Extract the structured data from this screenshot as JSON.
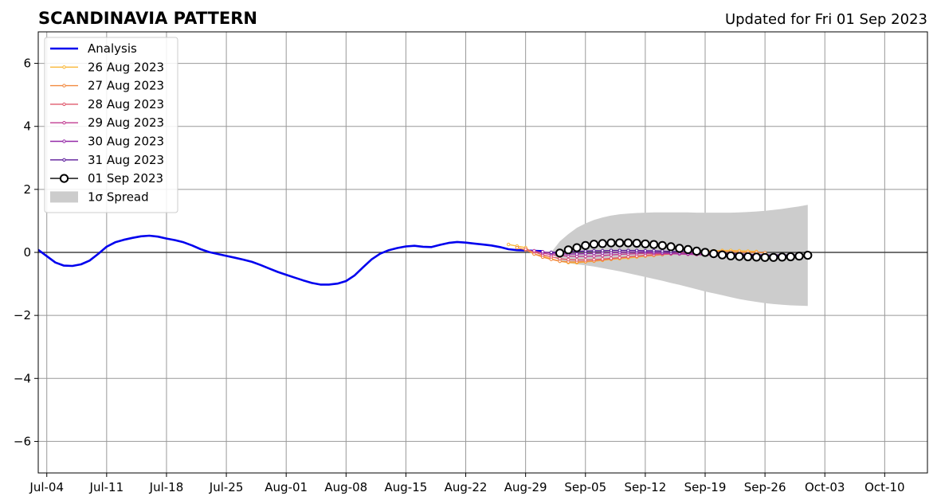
{
  "chart_data": {
    "type": "line",
    "title": "SCANDINAVIA PATTERN",
    "subtitle": "Updated for Fri 01 Sep 2023",
    "xlim": [
      "2023-07-03",
      "2023-10-15"
    ],
    "ylim": [
      -7,
      7
    ],
    "x_ticks": [
      {
        "date": "2023-07-04",
        "label": "Jul-04"
      },
      {
        "date": "2023-07-11",
        "label": "Jul-11"
      },
      {
        "date": "2023-07-18",
        "label": "Jul-18"
      },
      {
        "date": "2023-07-25",
        "label": "Jul-25"
      },
      {
        "date": "2023-08-01",
        "label": "Aug-01"
      },
      {
        "date": "2023-08-08",
        "label": "Aug-08"
      },
      {
        "date": "2023-08-15",
        "label": "Aug-15"
      },
      {
        "date": "2023-08-22",
        "label": "Aug-22"
      },
      {
        "date": "2023-08-29",
        "label": "Aug-29"
      },
      {
        "date": "2023-09-05",
        "label": "Sep-05"
      },
      {
        "date": "2023-09-12",
        "label": "Sep-12"
      },
      {
        "date": "2023-09-19",
        "label": "Sep-19"
      },
      {
        "date": "2023-09-26",
        "label": "Sep-26"
      },
      {
        "date": "2023-10-03",
        "label": "Oct-03"
      },
      {
        "date": "2023-10-10",
        "label": "Oct-10"
      }
    ],
    "y_ticks": [
      {
        "value": -6,
        "label": "−6"
      },
      {
        "value": -4,
        "label": "−4"
      },
      {
        "value": -2,
        "label": "−2"
      },
      {
        "value": 0,
        "label": "0"
      },
      {
        "value": 2,
        "label": "2"
      },
      {
        "value": 4,
        "label": "4"
      },
      {
        "value": 6,
        "label": "6"
      }
    ],
    "grid": true,
    "legend_position": "upper-left",
    "series": [
      {
        "name": "Analysis",
        "color": "#0000ee",
        "style": "line",
        "x": [
          "2023-07-03",
          "2023-07-04",
          "2023-07-05",
          "2023-07-06",
          "2023-07-07",
          "2023-07-08",
          "2023-07-09",
          "2023-07-10",
          "2023-07-11",
          "2023-07-12",
          "2023-07-13",
          "2023-07-14",
          "2023-07-15",
          "2023-07-16",
          "2023-07-17",
          "2023-07-18",
          "2023-07-19",
          "2023-07-20",
          "2023-07-21",
          "2023-07-22",
          "2023-07-23",
          "2023-07-24",
          "2023-07-25",
          "2023-07-26",
          "2023-07-27",
          "2023-07-28",
          "2023-07-29",
          "2023-07-30",
          "2023-07-31",
          "2023-08-01",
          "2023-08-02",
          "2023-08-03",
          "2023-08-04",
          "2023-08-05",
          "2023-08-06",
          "2023-08-07",
          "2023-08-08",
          "2023-08-09",
          "2023-08-10",
          "2023-08-11",
          "2023-08-12",
          "2023-08-13",
          "2023-08-14",
          "2023-08-15",
          "2023-08-16",
          "2023-08-17",
          "2023-08-18",
          "2023-08-19",
          "2023-08-20",
          "2023-08-21",
          "2023-08-22",
          "2023-08-23",
          "2023-08-24",
          "2023-08-25",
          "2023-08-26",
          "2023-08-27",
          "2023-08-28",
          "2023-08-29",
          "2023-08-30",
          "2023-08-31"
        ],
        "values": [
          0.08,
          -0.12,
          -0.32,
          -0.42,
          -0.43,
          -0.38,
          -0.26,
          -0.05,
          0.18,
          0.32,
          0.4,
          0.46,
          0.51,
          0.53,
          0.5,
          0.44,
          0.39,
          0.32,
          0.22,
          0.1,
          0.01,
          -0.05,
          -0.11,
          -0.17,
          -0.23,
          -0.3,
          -0.4,
          -0.51,
          -0.62,
          -0.71,
          -0.8,
          -0.89,
          -0.97,
          -1.02,
          -1.02,
          -0.99,
          -0.91,
          -0.73,
          -0.47,
          -0.22,
          -0.04,
          0.07,
          0.14,
          0.19,
          0.21,
          0.18,
          0.17,
          0.24,
          0.3,
          0.33,
          0.31,
          0.28,
          0.25,
          0.22,
          0.17,
          0.1,
          0.07,
          0.06,
          0.05,
          0.04
        ]
      },
      {
        "name": "26 Aug 2023",
        "color": "#f9b83a",
        "style": "line-small-markers",
        "x": [
          "2023-08-27",
          "2023-08-28",
          "2023-08-29",
          "2023-08-30",
          "2023-08-31",
          "2023-09-01",
          "2023-09-02",
          "2023-09-03",
          "2023-09-04",
          "2023-09-05",
          "2023-09-06",
          "2023-09-07",
          "2023-09-08",
          "2023-09-09",
          "2023-09-10",
          "2023-09-11",
          "2023-09-12",
          "2023-09-13",
          "2023-09-14",
          "2023-09-15",
          "2023-09-16",
          "2023-09-17",
          "2023-09-18",
          "2023-09-19",
          "2023-09-20",
          "2023-09-21",
          "2023-09-22",
          "2023-09-23",
          "2023-09-24",
          "2023-09-25"
        ],
        "values": [
          0.25,
          0.2,
          0.15,
          -0.05,
          -0.12,
          -0.2,
          -0.28,
          -0.32,
          -0.33,
          -0.3,
          -0.28,
          -0.25,
          -0.22,
          -0.2,
          -0.18,
          -0.15,
          -0.12,
          -0.1,
          -0.07,
          -0.05,
          -0.03,
          0.0,
          0.02,
          0.04,
          0.05,
          0.06,
          0.06,
          0.05,
          0.04,
          0.03
        ]
      },
      {
        "name": "27 Aug 2023",
        "color": "#f28a40",
        "style": "line-small-markers",
        "x": [
          "2023-08-28",
          "2023-08-29",
          "2023-08-30",
          "2023-08-31",
          "2023-09-01",
          "2023-09-02",
          "2023-09-03",
          "2023-09-04",
          "2023-09-05",
          "2023-09-06",
          "2023-09-07",
          "2023-09-08",
          "2023-09-09",
          "2023-09-10",
          "2023-09-11",
          "2023-09-12",
          "2023-09-13",
          "2023-09-14",
          "2023-09-15",
          "2023-09-16",
          "2023-09-17",
          "2023-09-18",
          "2023-09-19",
          "2023-09-20",
          "2023-09-21",
          "2023-09-22",
          "2023-09-23",
          "2023-09-24",
          "2023-09-25",
          "2023-09-26"
        ],
        "values": [
          0.15,
          0.08,
          -0.05,
          -0.15,
          -0.22,
          -0.28,
          -0.3,
          -0.3,
          -0.29,
          -0.27,
          -0.24,
          -0.21,
          -0.18,
          -0.15,
          -0.12,
          -0.09,
          -0.07,
          -0.05,
          -0.03,
          -0.01,
          0.0,
          0.02,
          0.03,
          0.03,
          0.03,
          0.02,
          0.01,
          0.0,
          0.0,
          -0.01
        ]
      },
      {
        "name": "28 Aug 2023",
        "color": "#e05a6e",
        "style": "line-small-markers",
        "x": [
          "2023-08-29",
          "2023-08-30",
          "2023-08-31",
          "2023-09-01",
          "2023-09-02",
          "2023-09-03",
          "2023-09-04",
          "2023-09-05",
          "2023-09-06",
          "2023-09-07",
          "2023-09-08",
          "2023-09-09",
          "2023-09-10",
          "2023-09-11",
          "2023-09-12",
          "2023-09-13",
          "2023-09-14",
          "2023-09-15",
          "2023-09-16",
          "2023-09-17",
          "2023-09-18",
          "2023-09-19",
          "2023-09-20",
          "2023-09-21",
          "2023-09-22",
          "2023-09-23",
          "2023-09-24",
          "2023-09-25",
          "2023-09-26",
          "2023-09-27"
        ],
        "values": [
          0.1,
          0.02,
          -0.08,
          -0.14,
          -0.2,
          -0.23,
          -0.24,
          -0.24,
          -0.23,
          -0.21,
          -0.19,
          -0.17,
          -0.14,
          -0.12,
          -0.1,
          -0.08,
          -0.06,
          -0.05,
          -0.04,
          -0.03,
          -0.03,
          -0.03,
          -0.04,
          -0.05,
          -0.06,
          -0.07,
          -0.08,
          -0.08,
          -0.09,
          -0.09
        ]
      },
      {
        "name": "29 Aug 2023",
        "color": "#c13b91",
        "style": "line-small-markers",
        "x": [
          "2023-08-30",
          "2023-08-31",
          "2023-09-01",
          "2023-09-02",
          "2023-09-03",
          "2023-09-04",
          "2023-09-05",
          "2023-09-06",
          "2023-09-07",
          "2023-09-08",
          "2023-09-09",
          "2023-09-10",
          "2023-09-11",
          "2023-09-12",
          "2023-09-13",
          "2023-09-14",
          "2023-09-15",
          "2023-09-16",
          "2023-09-17",
          "2023-09-18",
          "2023-09-19",
          "2023-09-20",
          "2023-09-21",
          "2023-09-22",
          "2023-09-23",
          "2023-09-24",
          "2023-09-25",
          "2023-09-26",
          "2023-09-27",
          "2023-09-28"
        ],
        "values": [
          0.05,
          -0.02,
          -0.07,
          -0.1,
          -0.12,
          -0.13,
          -0.13,
          -0.12,
          -0.1,
          -0.08,
          -0.06,
          -0.05,
          -0.04,
          -0.03,
          -0.03,
          -0.03,
          -0.04,
          -0.05,
          -0.06,
          -0.07,
          -0.08,
          -0.09,
          -0.1,
          -0.1,
          -0.1,
          -0.1,
          -0.1,
          -0.09,
          -0.09,
          -0.08
        ]
      },
      {
        "name": "30 Aug 2023",
        "color": "#9429a8",
        "style": "line-small-markers",
        "x": [
          "2023-08-31",
          "2023-09-01",
          "2023-09-02",
          "2023-09-03",
          "2023-09-04",
          "2023-09-05",
          "2023-09-06",
          "2023-09-07",
          "2023-09-08",
          "2023-09-09",
          "2023-09-10",
          "2023-09-11",
          "2023-09-12",
          "2023-09-13",
          "2023-09-14",
          "2023-09-15",
          "2023-09-16",
          "2023-09-17",
          "2023-09-18",
          "2023-09-19",
          "2023-09-20",
          "2023-09-21",
          "2023-09-22",
          "2023-09-23",
          "2023-09-24",
          "2023-09-25",
          "2023-09-26",
          "2023-09-27",
          "2023-09-28",
          "2023-09-29"
        ],
        "values": [
          0.02,
          -0.02,
          -0.04,
          -0.05,
          -0.05,
          -0.04,
          -0.03,
          -0.02,
          -0.01,
          0.0,
          0.01,
          0.01,
          0.01,
          0.0,
          -0.01,
          -0.02,
          -0.03,
          -0.04,
          -0.05,
          -0.06,
          -0.07,
          -0.08,
          -0.09,
          -0.09,
          -0.1,
          -0.1,
          -0.1,
          -0.1,
          -0.09,
          -0.09
        ]
      },
      {
        "name": "31 Aug 2023",
        "color": "#5b1a9a",
        "style": "line-small-markers",
        "x": [
          "2023-09-01",
          "2023-09-02",
          "2023-09-03",
          "2023-09-04",
          "2023-09-05",
          "2023-09-06",
          "2023-09-07",
          "2023-09-08",
          "2023-09-09",
          "2023-09-10",
          "2023-09-11",
          "2023-09-12",
          "2023-09-13",
          "2023-09-14",
          "2023-09-15",
          "2023-09-16",
          "2023-09-17",
          "2023-09-18",
          "2023-09-19",
          "2023-09-20",
          "2023-09-21",
          "2023-09-22",
          "2023-09-23",
          "2023-09-24",
          "2023-09-25",
          "2023-09-26",
          "2023-09-27",
          "2023-09-28",
          "2023-09-29",
          "2023-09-30"
        ],
        "values": [
          0.0,
          0.01,
          0.02,
          0.03,
          0.04,
          0.05,
          0.05,
          0.06,
          0.06,
          0.06,
          0.06,
          0.05,
          0.05,
          0.04,
          0.03,
          0.02,
          0.01,
          0.0,
          -0.01,
          -0.02,
          -0.03,
          -0.04,
          -0.05,
          -0.06,
          -0.07,
          -0.08,
          -0.08,
          -0.08,
          -0.08,
          -0.08
        ]
      },
      {
        "name": "01 Sep 2023",
        "color": "#000000",
        "style": "line-open-markers",
        "x": [
          "2023-09-02",
          "2023-09-03",
          "2023-09-04",
          "2023-09-05",
          "2023-09-06",
          "2023-09-07",
          "2023-09-08",
          "2023-09-09",
          "2023-09-10",
          "2023-09-11",
          "2023-09-12",
          "2023-09-13",
          "2023-09-14",
          "2023-09-15",
          "2023-09-16",
          "2023-09-17",
          "2023-09-18",
          "2023-09-19",
          "2023-09-20",
          "2023-09-21",
          "2023-09-22",
          "2023-09-23",
          "2023-09-24",
          "2023-09-25",
          "2023-09-26",
          "2023-09-27",
          "2023-09-28",
          "2023-09-29",
          "2023-09-30",
          "2023-10-01"
        ],
        "values": [
          -0.02,
          0.08,
          0.15,
          0.22,
          0.26,
          0.28,
          0.3,
          0.3,
          0.3,
          0.29,
          0.27,
          0.25,
          0.22,
          0.18,
          0.13,
          0.09,
          0.04,
          0.0,
          -0.04,
          -0.08,
          -0.11,
          -0.13,
          -0.14,
          -0.15,
          -0.16,
          -0.16,
          -0.15,
          -0.14,
          -0.12,
          -0.09
        ]
      }
    ],
    "spread": {
      "name": "1σ Spread",
      "color": "#cccccc",
      "x": [
        "2023-09-01",
        "2023-09-02",
        "2023-09-03",
        "2023-09-04",
        "2023-09-05",
        "2023-09-06",
        "2023-09-07",
        "2023-09-08",
        "2023-09-09",
        "2023-09-10",
        "2023-09-11",
        "2023-09-12",
        "2023-09-13",
        "2023-09-14",
        "2023-09-15",
        "2023-09-16",
        "2023-09-17",
        "2023-09-18",
        "2023-09-19",
        "2023-09-20",
        "2023-09-21",
        "2023-09-22",
        "2023-09-23",
        "2023-09-24",
        "2023-09-25",
        "2023-09-26",
        "2023-09-27",
        "2023-09-28",
        "2023-09-29",
        "2023-09-30",
        "2023-10-01"
      ],
      "upper": [
        0.0,
        0.35,
        0.58,
        0.78,
        0.92,
        1.03,
        1.11,
        1.17,
        1.21,
        1.23,
        1.25,
        1.26,
        1.27,
        1.27,
        1.27,
        1.27,
        1.27,
        1.26,
        1.26,
        1.26,
        1.26,
        1.26,
        1.27,
        1.28,
        1.3,
        1.32,
        1.35,
        1.38,
        1.42,
        1.46,
        1.51
      ],
      "lower": [
        0.0,
        -0.3,
        -0.34,
        -0.38,
        -0.41,
        -0.45,
        -0.5,
        -0.55,
        -0.6,
        -0.66,
        -0.72,
        -0.78,
        -0.84,
        -0.9,
        -0.97,
        -1.03,
        -1.1,
        -1.17,
        -1.24,
        -1.3,
        -1.36,
        -1.42,
        -1.48,
        -1.53,
        -1.57,
        -1.61,
        -1.64,
        -1.66,
        -1.68,
        -1.69,
        -1.7
      ]
    }
  }
}
